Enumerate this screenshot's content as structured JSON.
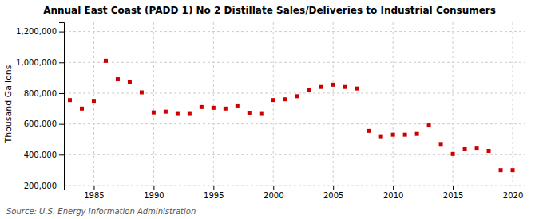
{
  "chart_data": {
    "type": "scatter",
    "title": "Annual East Coast (PADD 1) No 2 Distillate Sales/Deliveries to Industrial Consumers",
    "ylabel": "Thousand Gallons",
    "annotations": [
      "Source: U.S. Energy Information Administration"
    ],
    "x": [
      1983,
      1984,
      1985,
      1986,
      1987,
      1988,
      1989,
      1990,
      1991,
      1992,
      1993,
      1994,
      1995,
      1996,
      1997,
      1998,
      1999,
      2000,
      2001,
      2002,
      2003,
      2004,
      2005,
      2006,
      2007,
      2008,
      2009,
      2010,
      2011,
      2012,
      2013,
      2014,
      2015,
      2016,
      2017,
      2018,
      2019,
      2020
    ],
    "values": [
      755000,
      700000,
      750000,
      1010000,
      890000,
      870000,
      805000,
      675000,
      680000,
      665000,
      665000,
      710000,
      705000,
      700000,
      720000,
      670000,
      665000,
      755000,
      760000,
      780000,
      820000,
      840000,
      855000,
      840000,
      830000,
      555000,
      520000,
      530000,
      530000,
      535000,
      590000,
      470000,
      405000,
      440000,
      445000,
      425000,
      300000,
      300000
    ],
    "color": "#CC0000",
    "marker": "square",
    "xlim": [
      1982.5,
      2021
    ],
    "xticks": [
      1985,
      1990,
      1995,
      2000,
      2005,
      2010,
      2015,
      2020
    ],
    "ylim": [
      200000,
      1260000
    ],
    "yticks": [
      {
        "value": 200000,
        "label": "200,000"
      },
      {
        "value": 400000,
        "label": "400,000"
      },
      {
        "value": 600000,
        "label": "600,000"
      },
      {
        "value": 800000,
        "label": "800,000"
      },
      {
        "value": 1000000,
        "label": "1,000,000"
      },
      {
        "value": 1200000,
        "label": "1,200,000"
      }
    ],
    "grid": true
  }
}
